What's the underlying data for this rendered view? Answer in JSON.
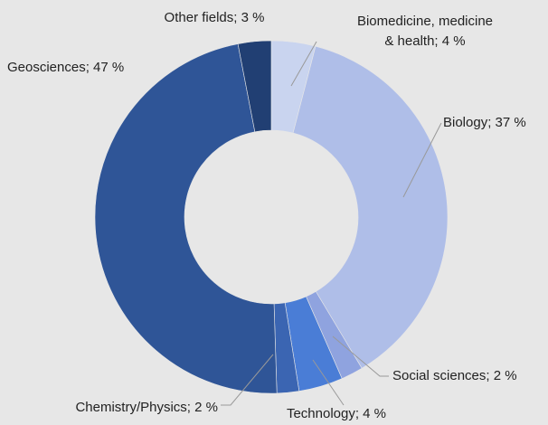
{
  "chart_data": {
    "type": "donut",
    "categories": [
      "Biomedicine, medicine & health",
      "Biology",
      "Social sciences",
      "Technology",
      "Chemistry/Physics",
      "Geosciences",
      "Other fields"
    ],
    "values": [
      4,
      37,
      2,
      4,
      2,
      47,
      3
    ],
    "value_labels": [
      [
        "Biomedicine, medicine",
        "& health; 4 %"
      ],
      [
        "Biology; 37 %"
      ],
      [
        "Social sciences; 2 %"
      ],
      [
        "Technology; 4 %"
      ],
      [
        "Chemistry/Physics; 2 %"
      ],
      [
        "Geosciences; 47 %"
      ],
      [
        "Other fields; 3 %"
      ]
    ],
    "colors": [
      "#c9d4ef",
      "#afbee8",
      "#8fa3df",
      "#4a7dd6",
      "#3b65b2",
      "#2f5597",
      "#213f73"
    ]
  }
}
